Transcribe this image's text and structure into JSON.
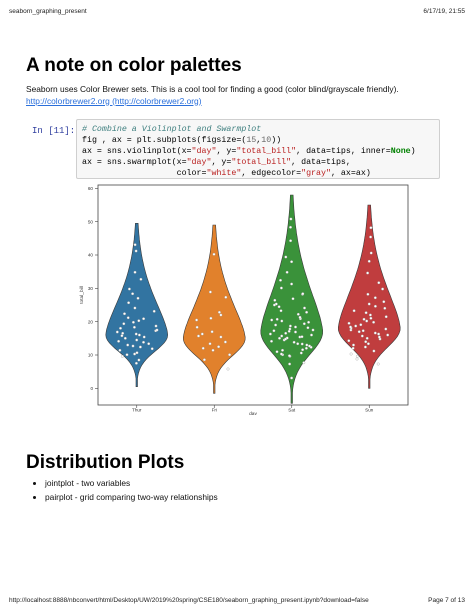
{
  "header": {
    "title": "seaborn_graphing_present",
    "datetime": "6/17/19, 21:55"
  },
  "section1": {
    "heading": "A note on color palettes",
    "paragraph": "Seaborn uses Color Brewer sets. This is a cool tool for finding a good (color blind/grayscale friendly).",
    "link_text": "http://colorbrewer2.org (http://colorbrewer2.org)"
  },
  "code_cell": {
    "prompt": "In [11]:",
    "comment": "# Combine a Violinplot and Swarmplot",
    "line2_a": "fig , ax = plt.subplots(figsize=(",
    "line2_n1": "15",
    "line2_b": ",",
    "line2_n2": "10",
    "line2_c": "))",
    "line3_a": "ax = sns.violinplot(x=",
    "line3_s1": "\"day\"",
    "line3_b": ", y=",
    "line3_s2": "\"total_bill\"",
    "line3_c": ", data=tips, inner=",
    "line3_kw": "None",
    "line3_d": ")",
    "line4_a": "ax = sns.swarmplot(x=",
    "line4_s1": "\"day\"",
    "line4_b": ", y=",
    "line4_s2": "\"total_bill\"",
    "line4_c": ", data=tips,",
    "line5_a": "                   color=",
    "line5_s1": "\"white\"",
    "line5_b": ", edgecolor=",
    "line5_s2": "\"gray\"",
    "line5_c": ", ax=ax)"
  },
  "chart_data": {
    "type": "violin",
    "categories": [
      "Thur",
      "Fri",
      "Sat",
      "Sun"
    ],
    "xlabel": "day",
    "ylabel": "total_bill",
    "ylim": [
      -5,
      61
    ],
    "yticks": [
      0,
      10,
      20,
      30,
      40,
      50,
      60
    ],
    "colors": [
      "#3274a1",
      "#e1812c",
      "#3a923a",
      "#c03d3e"
    ],
    "violins": [
      {
        "category": "Thur",
        "min": 0.5,
        "max": 49.5,
        "mode": 16,
        "range": [
          7.5,
          43.1
        ]
      },
      {
        "category": "Fri",
        "min": -1.5,
        "max": 49,
        "mode": 15,
        "range": [
          5.8,
          40.2
        ]
      },
      {
        "category": "Sat",
        "min": -4.5,
        "max": 58,
        "mode": 17,
        "range": [
          3.1,
          50.8
        ]
      },
      {
        "category": "Sun",
        "min": 0,
        "max": 55,
        "mode": 18,
        "range": [
          7.3,
          48.2
        ]
      }
    ],
    "swarm_points": [
      {
        "category": "Thur",
        "values": [
          7.5,
          8.5,
          9.6,
          10.1,
          10.3,
          10.7,
          11.4,
          11.9,
          12.4,
          12.7,
          13.0,
          13.4,
          13.8,
          14.1,
          14.5,
          15.0,
          15.4,
          15.8,
          16.0,
          16.3,
          16.5,
          16.9,
          17.3,
          17.5,
          18.0,
          18.3,
          18.7,
          19.4,
          19.8,
          20.3,
          20.9,
          21.2,
          22.4,
          23.1,
          24.1,
          25.7,
          27.0,
          28.4,
          29.8,
          32.7,
          34.8,
          41.2,
          43.1
        ]
      },
      {
        "category": "Fri",
        "values": [
          5.8,
          8.6,
          10.1,
          11.4,
          12.0,
          12.5,
          13.4,
          13.9,
          15.4,
          15.7,
          16.3,
          17.0,
          18.3,
          20.5,
          21.0,
          22.0,
          22.8,
          27.3,
          28.9,
          40.2
        ]
      },
      {
        "category": "Sat",
        "values": [
          3.1,
          7.3,
          7.7,
          9.6,
          9.8,
          10.1,
          10.3,
          10.6,
          11.0,
          11.4,
          11.6,
          12.0,
          12.3,
          12.7,
          13.0,
          13.3,
          13.4,
          13.8,
          14.1,
          14.5,
          14.8,
          15.0,
          15.1,
          15.4,
          15.5,
          15.7,
          16.0,
          16.3,
          16.5,
          16.9,
          17.1,
          17.3,
          17.5,
          17.8,
          18.2,
          18.4,
          18.7,
          19.0,
          19.4,
          19.8,
          20.2,
          20.5,
          20.7,
          20.9,
          21.3,
          22.2,
          22.8,
          23.3,
          24.1,
          24.5,
          25.0,
          25.3,
          26.4,
          26.9,
          28.2,
          28.4,
          30.1,
          31.3,
          32.4,
          34.8,
          38.0,
          39.4,
          44.3,
          48.3,
          50.8
        ]
      },
      {
        "category": "Sun",
        "values": [
          7.3,
          8.8,
          9.6,
          10.3,
          11.2,
          12.0,
          12.4,
          13.0,
          13.4,
          14.0,
          14.3,
          14.8,
          15.0,
          15.4,
          15.7,
          16.0,
          16.3,
          16.6,
          17.0,
          17.3,
          17.5,
          17.8,
          18.1,
          18.4,
          18.7,
          19.1,
          19.5,
          19.8,
          20.2,
          20.7,
          21.0,
          21.5,
          22.0,
          22.7,
          23.3,
          24.0,
          24.6,
          25.3,
          26.0,
          27.2,
          28.2,
          29.8,
          31.7,
          34.6,
          38.1,
          40.6,
          45.4,
          48.2
        ]
      }
    ]
  },
  "section2": {
    "heading": "Distribution Plots",
    "bullets": [
      "jointplot - two variables",
      "pairplot - grid comparing two-way relationships"
    ]
  },
  "footer": {
    "url": "http://localhost:8888/nbconvert/html/Desktop/UW/2019%20spring/CSE180/seaborn_graphing_present.ipynb?download=false",
    "page": "Page 7 of 13"
  }
}
